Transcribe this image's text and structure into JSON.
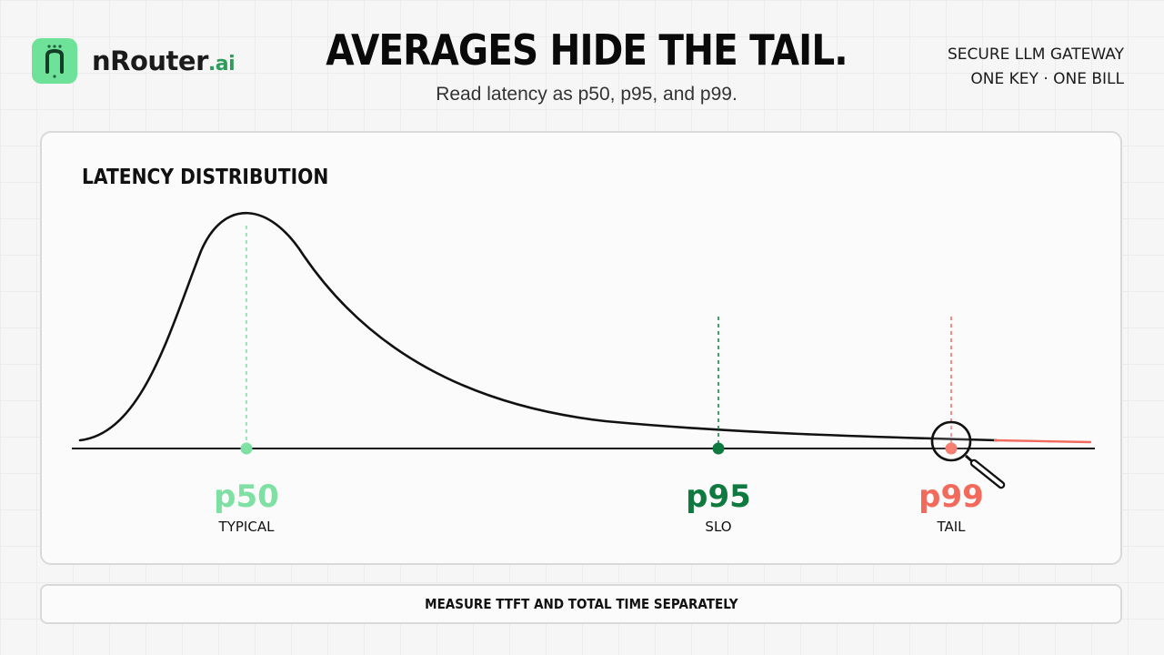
{
  "brand": {
    "name": "nRouter",
    "suffix": ".ai",
    "accent": "#6fe29a"
  },
  "header": {
    "title": "AVERAGES HIDE THE TAIL.",
    "subtitle": "Read latency as p50, p95, and p99.",
    "tagline_1": "SECURE LLM GATEWAY",
    "tagline_2": "ONE KEY · ONE BILL"
  },
  "chart_data": {
    "type": "area",
    "title": "LATENCY DISTRIBUTION",
    "xlabel": "",
    "ylabel": "",
    "grid": false,
    "curve": "right-skewed (long tail) latency distribution",
    "markers": [
      {
        "label": "p50",
        "caption": "TYPICAL",
        "color": "#7ee0a2"
      },
      {
        "label": "p95",
        "caption": "SLO",
        "color": "#0f7a3f"
      },
      {
        "label": "p99",
        "caption": "TAIL",
        "color": "#f26a5b"
      }
    ],
    "tail_highlight_color": "#f26a5b"
  },
  "footer": {
    "text": "MEASURE TTFT AND TOTAL TIME SEPARATELY"
  }
}
